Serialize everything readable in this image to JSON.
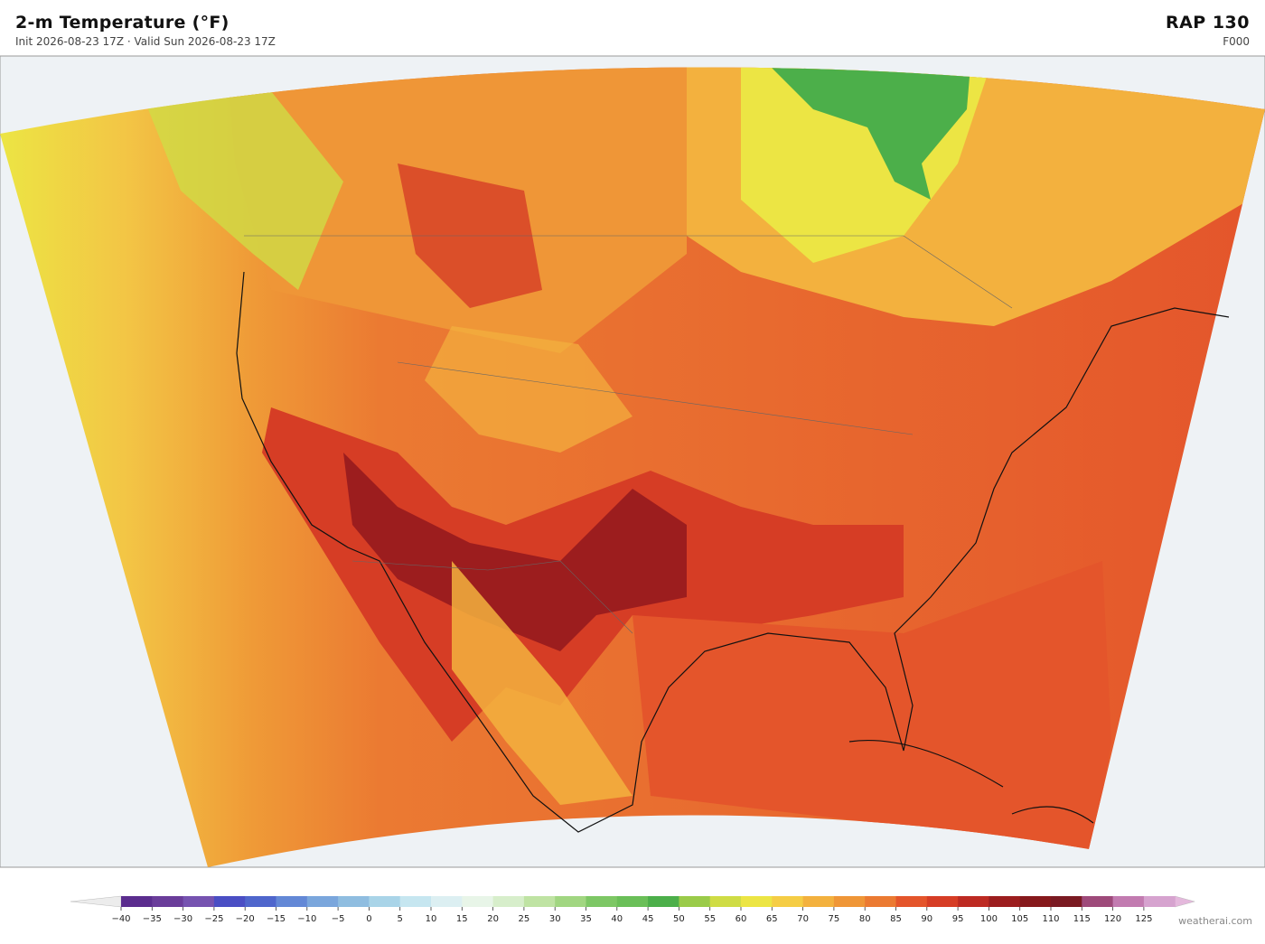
{
  "header": {
    "title": "2-m Temperature  (°F)",
    "subtitle": "Init 2026-08-23 17Z   ·   Valid Sun 2026-08-23 17Z",
    "model": "RAP  130",
    "forecast_hour": "F000"
  },
  "colorbar": {
    "ticks": [
      "−40",
      "−35",
      "−30",
      "−25",
      "−20",
      "−15",
      "−10",
      "−5",
      "0",
      "5",
      "10",
      "15",
      "20",
      "25",
      "30",
      "35",
      "40",
      "45",
      "50",
      "55",
      "60",
      "65",
      "70",
      "75",
      "80",
      "85",
      "90",
      "95",
      "100",
      "105",
      "110",
      "115",
      "120",
      "125"
    ],
    "colors": [
      "#5b2d8e",
      "#6a3d9a",
      "#7653b0",
      "#4a4ec4",
      "#4f66cc",
      "#6388d6",
      "#7aa6dc",
      "#8fbde0",
      "#a9d4e8",
      "#c6e6f0",
      "#dceff2",
      "#e8f5e8",
      "#d7eecb",
      "#bfe3a3",
      "#a1d681",
      "#7dc765",
      "#6abf58",
      "#4caf4a",
      "#9acb49",
      "#cfdc45",
      "#ece544",
      "#f5cd45",
      "#f3b13e",
      "#ef9637",
      "#eb7a32",
      "#e4552b",
      "#d63d25",
      "#bd2a22",
      "#9c1d1e",
      "#86191c",
      "#7a1a22",
      "#9e4a7a",
      "#c27bb0",
      "#d6a3cf"
    ]
  },
  "credit": "weatherai.com"
}
